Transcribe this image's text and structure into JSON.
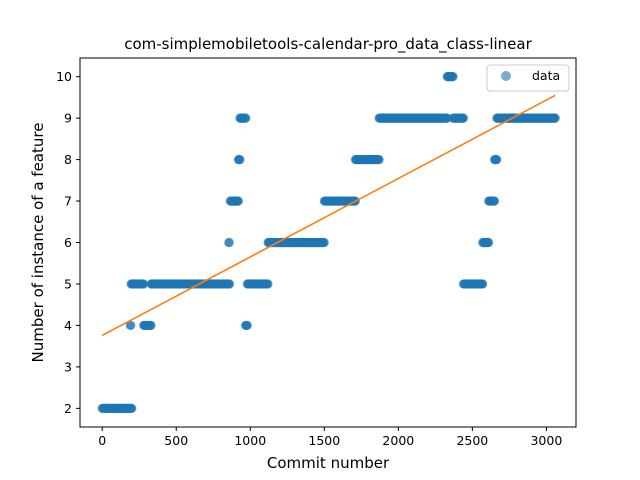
{
  "chart_data": {
    "type": "scatter",
    "title": "com-simplemobiletools-calendar-pro_data_class-linear",
    "xlabel": "Commit number",
    "ylabel": "Number of instance of a feature",
    "xlim": [
      -150,
      3200
    ],
    "ylim": [
      1.55,
      10.45
    ],
    "xticks": [
      0,
      500,
      1000,
      1500,
      2000,
      2500,
      3000
    ],
    "yticks": [
      2,
      3,
      4,
      5,
      6,
      7,
      8,
      9,
      10
    ],
    "grid": false,
    "legend": {
      "placement": "top-right",
      "entries": [
        "data"
      ]
    },
    "colors": {
      "points": "#1f77b4",
      "fit_line": "#ff7f0e"
    },
    "series": [
      {
        "name": "data",
        "kind": "scatter",
        "segments": [
          {
            "x_start": 0,
            "x_end": 200,
            "y": 2
          },
          {
            "x_start": 190,
            "x_end": 193,
            "y": 4
          },
          {
            "x_start": 195,
            "x_end": 280,
            "y": 5
          },
          {
            "x_start": 280,
            "x_end": 330,
            "y": 4
          },
          {
            "x_start": 330,
            "x_end": 860,
            "y": 5
          },
          {
            "x_start": 855,
            "x_end": 858,
            "y": 6
          },
          {
            "x_start": 865,
            "x_end": 920,
            "y": 7
          },
          {
            "x_start": 920,
            "x_end": 930,
            "y": 8
          },
          {
            "x_start": 930,
            "x_end": 970,
            "y": 9
          },
          {
            "x_start": 968,
            "x_end": 980,
            "y": 4
          },
          {
            "x_start": 980,
            "x_end": 1120,
            "y": 5
          },
          {
            "x_start": 1120,
            "x_end": 1500,
            "y": 6
          },
          {
            "x_start": 1500,
            "x_end": 1710,
            "y": 7
          },
          {
            "x_start": 1710,
            "x_end": 1870,
            "y": 8
          },
          {
            "x_start": 1870,
            "x_end": 2330,
            "y": 9
          },
          {
            "x_start": 2330,
            "x_end": 2370,
            "y": 10
          },
          {
            "x_start": 2370,
            "x_end": 2440,
            "y": 9
          },
          {
            "x_start": 2440,
            "x_end": 2570,
            "y": 5
          },
          {
            "x_start": 2570,
            "x_end": 2610,
            "y": 6
          },
          {
            "x_start": 2610,
            "x_end": 2650,
            "y": 7
          },
          {
            "x_start": 2650,
            "x_end": 2665,
            "y": 8
          },
          {
            "x_start": 2665,
            "x_end": 3060,
            "y": 9
          }
        ]
      },
      {
        "name": "",
        "kind": "line",
        "x": [
          0,
          3060
        ],
        "y": [
          3.76,
          9.55
        ]
      }
    ]
  }
}
